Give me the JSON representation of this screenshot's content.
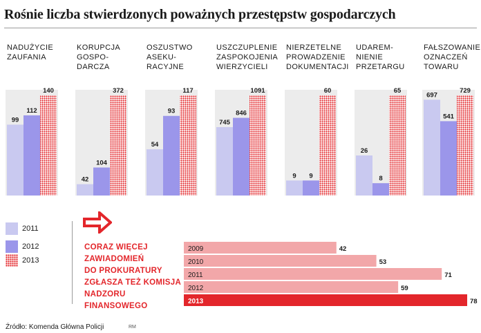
{
  "title": "Rośnie liczba stwierdzonych poważnych przestępstw gospodarczych",
  "legend": [
    {
      "label": "2011",
      "color": "#c9c9f0"
    },
    {
      "label": "2012",
      "color": "#9b96ea"
    },
    {
      "label": "2013",
      "color": "#e3262b",
      "pattern": "dotted"
    }
  ],
  "note": "CORAZ WIĘCEJ\nZAWIADOMIEŃ\nDO PROKURATURY\nZGŁASZA TEŻ KOMISJA\nNADZORU\nFINANSOWEGO",
  "arrow_icon": "right-arrow-icon",
  "source": "Źródło: Komenda Główna Policji",
  "author": "RM",
  "colors": {
    "light": "#c9c9f0",
    "mid": "#9b96ea",
    "red": "#e3262b",
    "salmon": "#f2a7a9"
  },
  "chart_data": [
    {
      "type": "bar",
      "title": "Rośnie liczba stwierdzonych poważnych przestępstw gospodarczych",
      "categories": [
        "NADUŻYCIE\nZAUFANIA",
        "KORUPCJA\nGOSPO-\nDARCZA",
        "OSZUSTWO\nASEKU-\nRACYJNE",
        "USZCZUPLENIE\nZASPOKOJENIA\nWIERZYCIELI",
        "NIERZETELNE\nPROWADZENIE\nDOKUMENTACJI",
        "UDAREM-\nNIENIE\nPRZETARGU",
        "FAŁSZOWANIE\nOZNACZEŃ\nTOWARU"
      ],
      "series": [
        {
          "name": "2011",
          "values": [
            99,
            42,
            54,
            745,
            9,
            26,
            697
          ]
        },
        {
          "name": "2012",
          "values": [
            112,
            104,
            93,
            846,
            9,
            8,
            541
          ]
        },
        {
          "name": "2013",
          "values": [
            140,
            372,
            117,
            1091,
            60,
            65,
            729
          ]
        }
      ],
      "scale": "each category scaled independently",
      "legend": "bottom-left"
    },
    {
      "type": "bar",
      "orientation": "horizontal",
      "categories": [
        "2009",
        "2010",
        "2011",
        "2012",
        "2013"
      ],
      "values": [
        42,
        53,
        71,
        59,
        78
      ]
    }
  ]
}
